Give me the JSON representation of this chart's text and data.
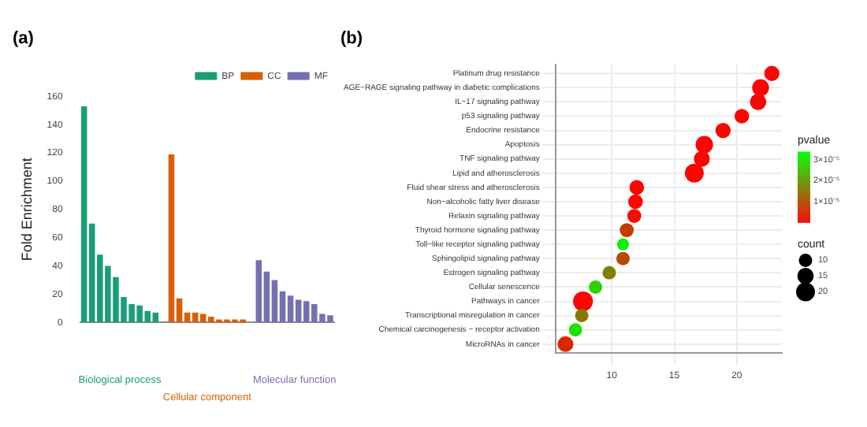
{
  "chart_data": [
    {
      "type": "bar",
      "title": "(a)",
      "ylabel": "Fold Enrichment",
      "categories": [
        null,
        null,
        null,
        null,
        null,
        null,
        null,
        null,
        null,
        null,
        null,
        null,
        null,
        null,
        null,
        null,
        null,
        null,
        null,
        null,
        null,
        null,
        null,
        null,
        null,
        null,
        null,
        null,
        null,
        null,
        null,
        null
      ],
      "series": [
        {
          "name": "BP",
          "color": "#1b9e77",
          "values": [
            153,
            70,
            48,
            40,
            32,
            18,
            13,
            12,
            8,
            7,
            null,
            null,
            null,
            null,
            null,
            null,
            null,
            null,
            null,
            null,
            null,
            null,
            null,
            null,
            null,
            null,
            null,
            null,
            null,
            null,
            null,
            null
          ]
        },
        {
          "name": "CC",
          "color": "#d95f02",
          "values": [
            null,
            null,
            null,
            null,
            null,
            null,
            null,
            null,
            null,
            null,
            null,
            119,
            17,
            7,
            7,
            6,
            4,
            2,
            2,
            2,
            2,
            null,
            null,
            null,
            null,
            null,
            null,
            null,
            null,
            null,
            null,
            null
          ]
        },
        {
          "name": "MF",
          "color": "#7570b3",
          "values": [
            null,
            null,
            null,
            null,
            null,
            null,
            null,
            null,
            null,
            null,
            null,
            null,
            null,
            null,
            null,
            null,
            null,
            null,
            null,
            null,
            null,
            null,
            44,
            36,
            30,
            22,
            19,
            16,
            15,
            13,
            6,
            5
          ]
        }
      ],
      "ylim": [
        0,
        160
      ],
      "yticks": [
        0,
        20,
        40,
        60,
        80,
        100,
        120,
        140,
        160
      ],
      "grid": false,
      "legend": "top right",
      "annotations": [
        "Biological process",
        "Cellular component",
        "Molecular function"
      ]
    },
    {
      "type": "bubble",
      "title": "(b)",
      "orientation": "horizontal",
      "categories": [
        "Platinum drug resistance",
        "AGE−RAGE signaling pathway in diabetic complications",
        "IL−17 signaling pathway",
        "p53 signaling pathway",
        "Endocrine resistance",
        "Apoptosis",
        "TNF signaling pathway",
        "Lipid and atherosclerosis",
        "Fluid shear stress and atherosclerosis",
        "Non−alcoholic fatty liver disease",
        "Relaxin signaling pathway",
        "Thyroid hormone signaling pathway",
        "Toll−like receptor signaling pathway",
        "Sphingolipid signaling pathway",
        "Estrogen signaling pathway",
        "Cellular senescence",
        "Pathways in cancer",
        "Transcriptional misregulation in cancer",
        "Chemical carcinogenesis − receptor activation",
        "MicroRNAs in cancer"
      ],
      "values": [
        22.8,
        21.9,
        21.7,
        20.4,
        18.9,
        17.4,
        17.2,
        16.6,
        12.0,
        11.9,
        11.8,
        11.2,
        10.9,
        10.9,
        9.8,
        8.7,
        7.7,
        7.6,
        7.1,
        6.3
      ],
      "sizes": [
        13,
        16,
        15,
        12,
        13,
        17,
        14,
        20,
        12,
        12,
        11,
        11,
        8,
        10,
        10,
        10,
        22,
        10,
        10,
        14
      ],
      "size_legend": [
        10,
        15,
        20
      ],
      "legend_title": "count",
      "cvalues": [
        1e-06,
        1e-06,
        1e-06,
        1e-06,
        1e-06,
        1e-06,
        1e-06,
        1e-06,
        1e-06,
        1e-06,
        2e-06,
        8e-06,
        3.2e-05,
        1e-05,
        1.7e-05,
        2.8e-05,
        1e-06,
        1.6e-05,
        3e-05,
        5e-06
      ],
      "clabel": "pvalue",
      "clim": [
        0,
        3.4e-05
      ],
      "cticks": [
        {
          "value": 1e-05,
          "label": "1×10⁻⁵"
        },
        {
          "value": 2e-05,
          "label": "2×10⁻⁵"
        },
        {
          "value": 3e-05,
          "label": "3×10⁻⁵"
        }
      ],
      "xlim": [
        5.5,
        23.6
      ],
      "xticks": [
        10,
        15,
        20
      ],
      "grid": true
    }
  ]
}
